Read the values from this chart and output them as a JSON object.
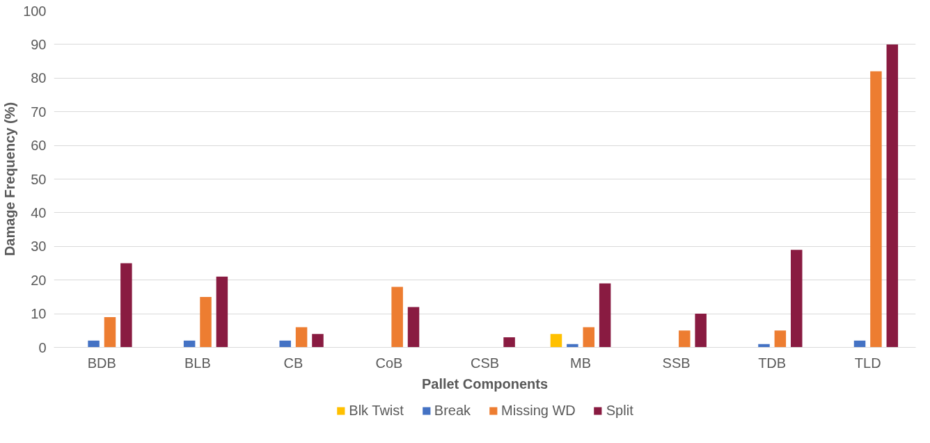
{
  "chart_data": {
    "type": "bar",
    "xlabel": "Pallet Components",
    "ylabel": "Damage Frequency (%)",
    "categories": [
      "BDB",
      "BLB",
      "CB",
      "CoB",
      "CSB",
      "MB",
      "SSB",
      "TDB",
      "TLD"
    ],
    "series": [
      {
        "name": "Blk Twist",
        "color": "#ffc000",
        "values": [
          0,
          0,
          0,
          0,
          0,
          4,
          0,
          0,
          0
        ]
      },
      {
        "name": "Break",
        "color": "#4472c4",
        "values": [
          2,
          2,
          2,
          0,
          0,
          1,
          0,
          1,
          2
        ]
      },
      {
        "name": "Missing WD",
        "color": "#ed7d31",
        "values": [
          9,
          15,
          6,
          18,
          0,
          6,
          5,
          5,
          82
        ]
      },
      {
        "name": "Split",
        "color": "#891b41",
        "values": [
          25,
          21,
          4,
          12,
          3,
          19,
          10,
          29,
          90
        ]
      }
    ],
    "ylim": [
      0,
      100
    ],
    "yticks": [
      0,
      10,
      20,
      30,
      40,
      50,
      60,
      70,
      80,
      90,
      100
    ],
    "grid": "y",
    "legend": "bottom"
  }
}
